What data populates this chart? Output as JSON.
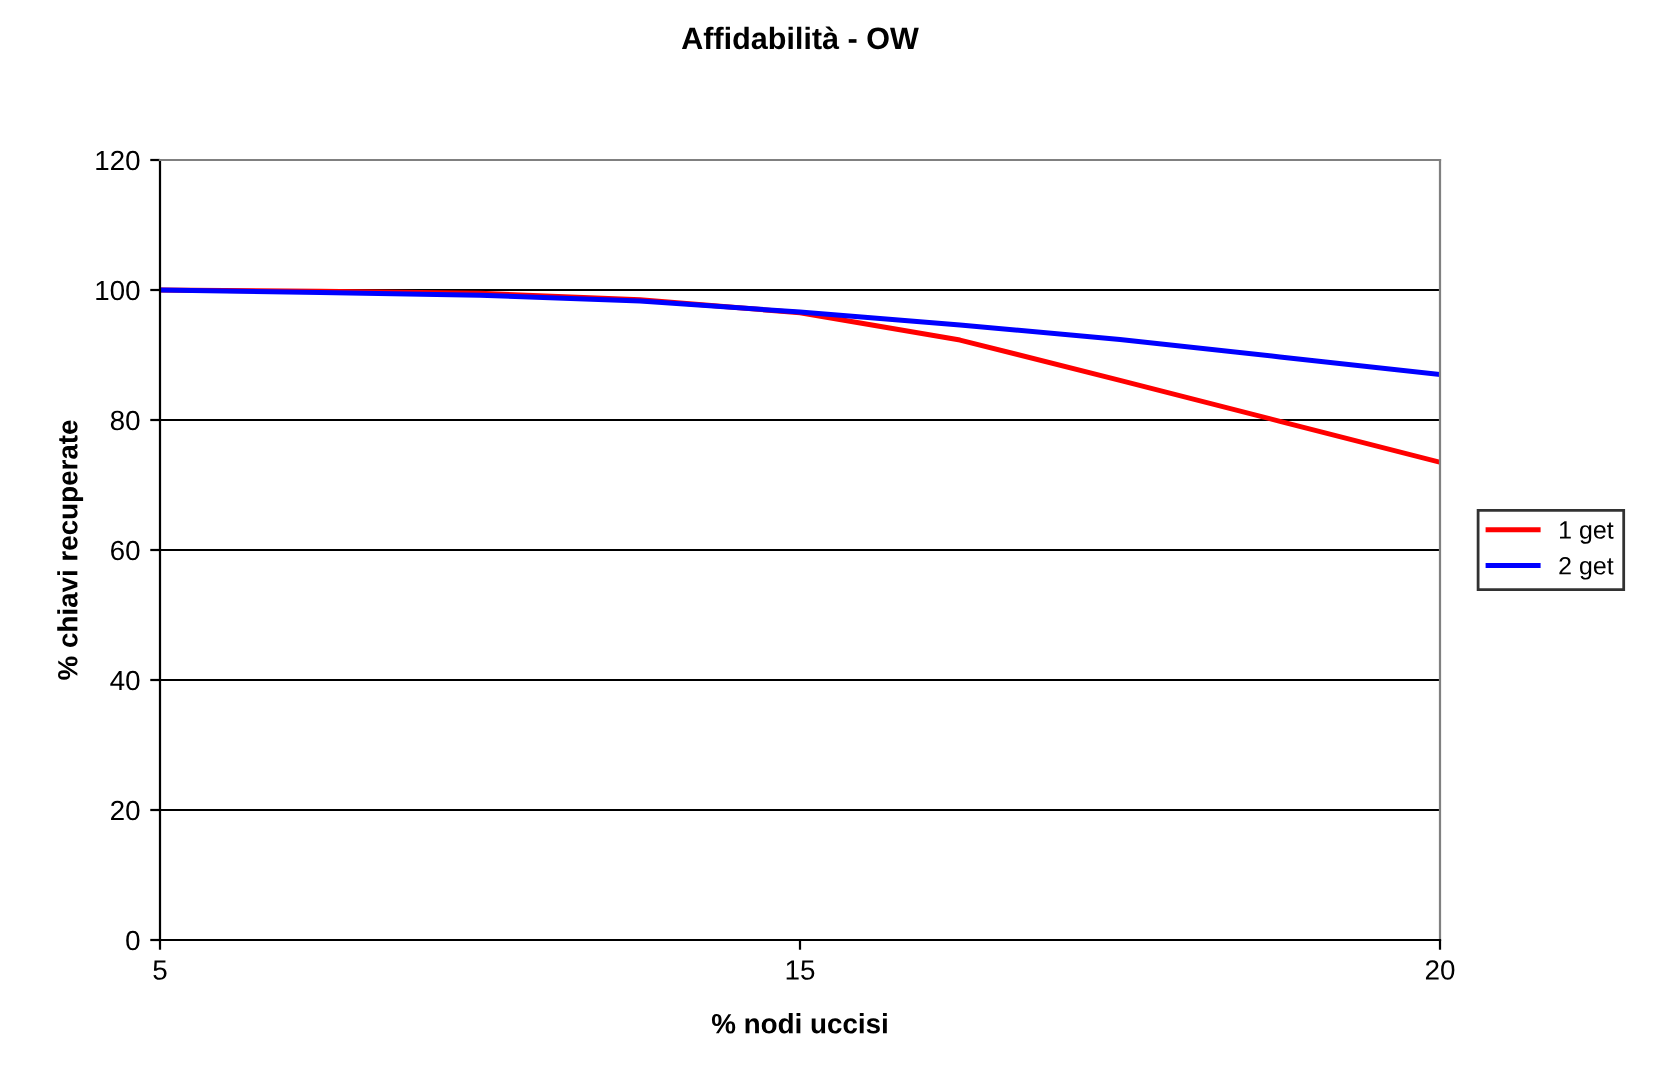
{
  "chart_data": {
    "type": "line",
    "title": "Affidabilità - OW",
    "xlabel": "% nodi uccisi",
    "ylabel": "% chiavi recuperate",
    "categories": [
      "5",
      null,
      null,
      null,
      "15",
      null,
      null,
      null,
      "20"
    ],
    "series": [
      {
        "name": "1 get",
        "color": "#ff0000",
        "values": [
          100,
          99.8,
          99.5,
          98.5,
          96.5,
          92.3,
          86.1,
          79.8,
          73.5
        ]
      },
      {
        "name": "2 get",
        "color": "#0000ff",
        "values": [
          100,
          99.6,
          99.2,
          98.3,
          96.6,
          94.6,
          92.4,
          89.7,
          87
        ]
      }
    ],
    "ylim": [
      0,
      120
    ],
    "yticks": [
      0,
      20,
      40,
      60,
      80,
      100,
      120
    ],
    "grid": "y",
    "legend": "right",
    "marker": "none",
    "line_style": "solid"
  }
}
